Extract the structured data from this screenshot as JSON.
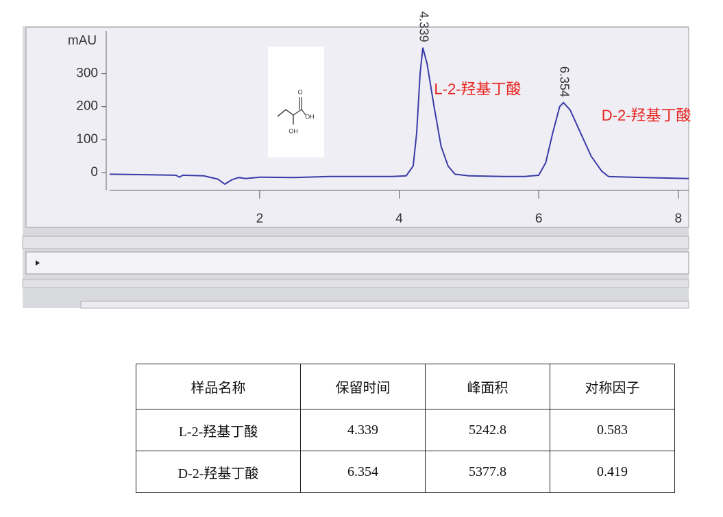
{
  "chart_data": {
    "type": "line",
    "y_label": "mAU",
    "x": [
      -0.15,
      0.5,
      0.8,
      0.85,
      0.9,
      1.2,
      1.4,
      1.5,
      1.6,
      1.7,
      1.8,
      2.0,
      2.5,
      3.0,
      3.5,
      3.9,
      4.1,
      4.2,
      4.25,
      4.3,
      4.339,
      4.4,
      4.5,
      4.6,
      4.7,
      4.8,
      5.0,
      5.5,
      5.8,
      6.0,
      6.1,
      6.2,
      6.3,
      6.354,
      6.45,
      6.6,
      6.75,
      6.9,
      7.0,
      7.5,
      8.15
    ],
    "values": [
      -5,
      -7,
      -8,
      -14,
      -8,
      -10,
      -20,
      -35,
      -22,
      -15,
      -18,
      -14,
      -15,
      -12,
      -12,
      -12,
      -10,
      20,
      120,
      300,
      379,
      330,
      200,
      80,
      20,
      -5,
      -10,
      -12,
      -12,
      -8,
      30,
      120,
      200,
      212,
      190,
      120,
      50,
      5,
      -12,
      -15,
      -18
    ],
    "color": "#3a3aa8",
    "xlim": [
      -0.15,
      8.15
    ],
    "xticks": [
      2,
      4,
      6,
      8
    ],
    "ylim": [
      -54,
      430
    ],
    "yticks": [
      0,
      100,
      200,
      300
    ],
    "peak_labels": [
      20,
      33
    ],
    "annotations": [
      {
        "text": "L-2-羟基丁酸",
        "x": 4.5,
        "y": 250
      },
      {
        "text": "D-2-羟基丁酸",
        "x": 6.9,
        "y": 170
      }
    ],
    "annotation_color": "#e8231e"
  },
  "structure": {
    "atoms": [
      "O",
      "OH",
      "OH"
    ]
  },
  "table": {
    "header": [
      "样品名称",
      "保留时间",
      "峰面积",
      "对称因子"
    ],
    "rows": [
      [
        "L-2-羟基丁酸",
        4.339,
        5242.8,
        0.583
      ],
      [
        "D-2-羟基丁酸",
        6.354,
        5377.8,
        0.419
      ]
    ]
  }
}
